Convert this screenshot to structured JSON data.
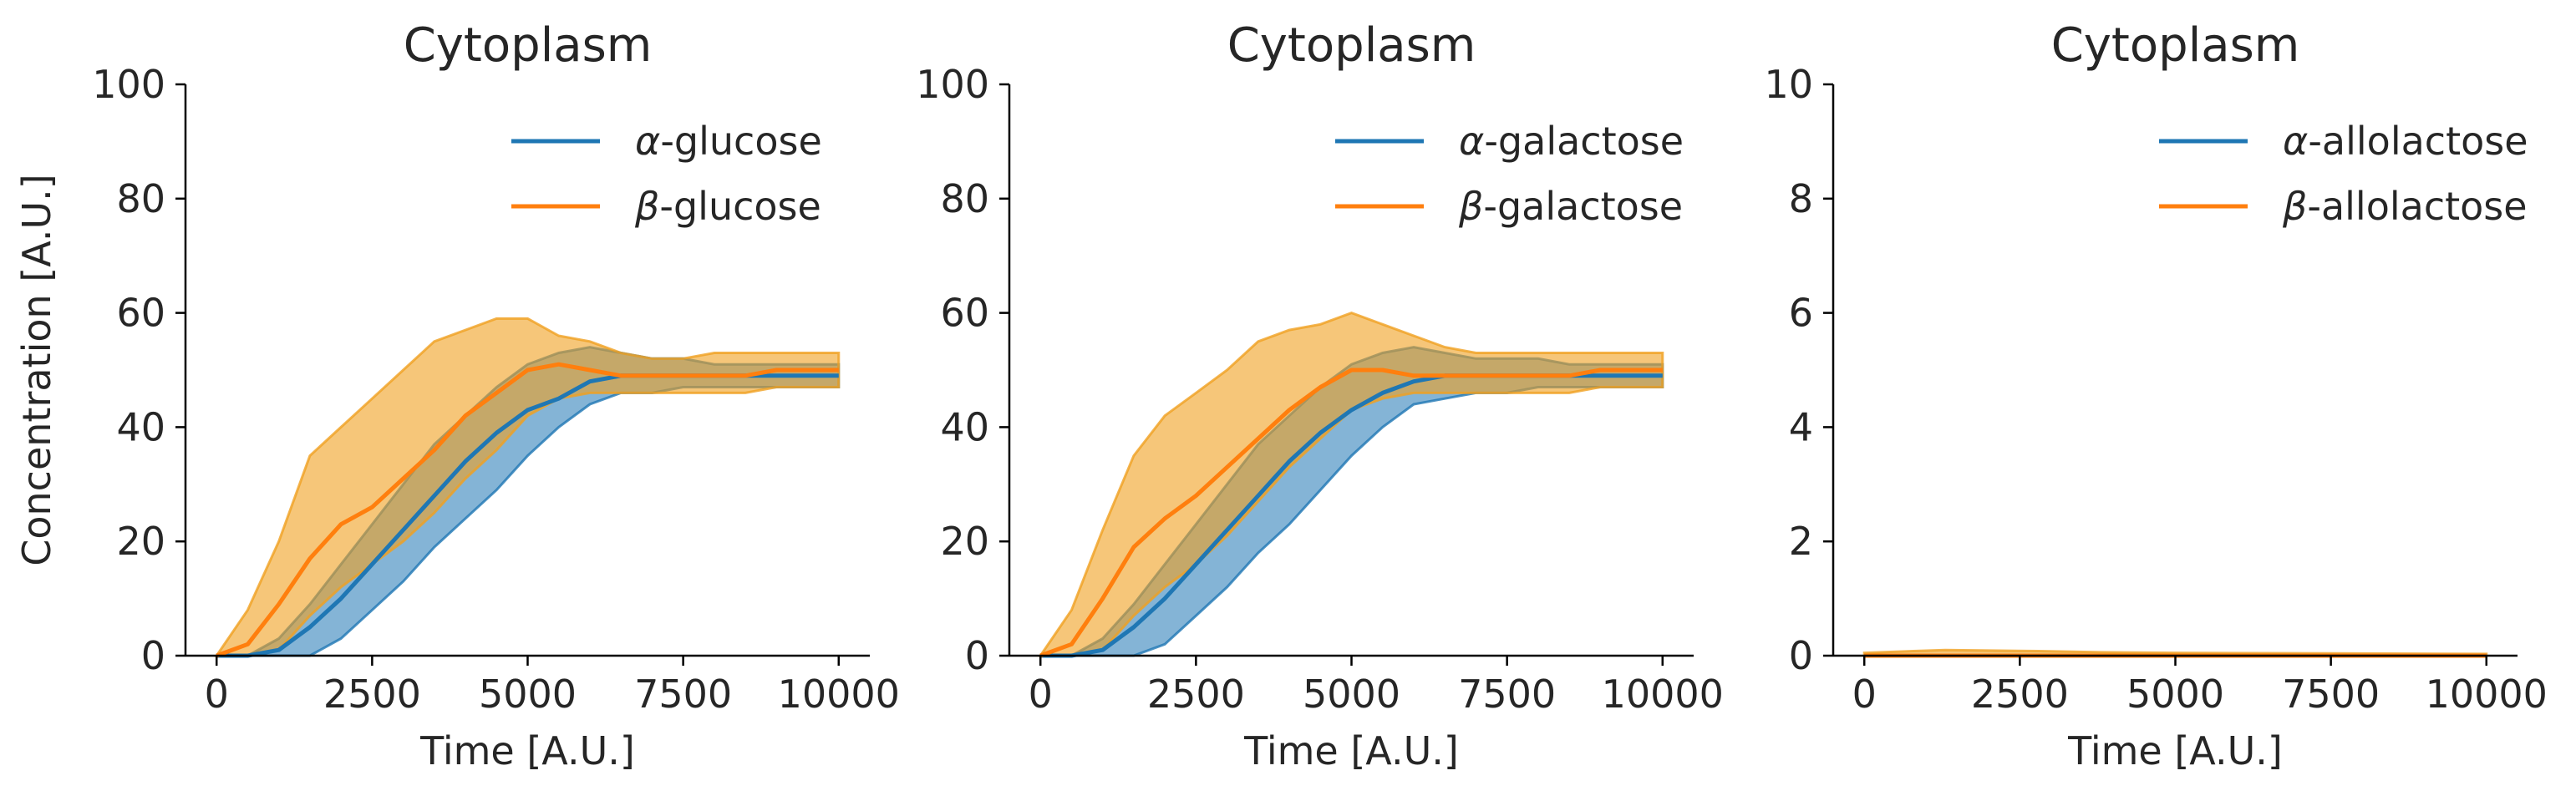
{
  "chart_data": [
    {
      "type": "line",
      "title": "Cytoplasm",
      "xlabel": "Time [A.U.]",
      "ylabel": "Concentration [A.U.]",
      "xlim": [
        -500,
        10500
      ],
      "ylim": [
        0,
        100
      ],
      "xticks": [
        0,
        2500,
        5000,
        7500,
        10000
      ],
      "xtick_labels": [
        "0",
        "2500",
        "5000",
        "7500",
        "10000"
      ],
      "yticks": [
        0,
        20,
        40,
        60,
        80,
        100
      ],
      "ytick_labels": [
        "0",
        "20",
        "40",
        "60",
        "80",
        "100"
      ],
      "grid": false,
      "legend": "top-right",
      "series": [
        {
          "name_greek": "α",
          "name": "-glucose",
          "color": "#1f77b4",
          "x": [
            0,
            500,
            1000,
            1500,
            2000,
            2500,
            3000,
            3500,
            4000,
            4500,
            5000,
            5500,
            6000,
            6500,
            7000,
            7500,
            8000,
            8500,
            9000,
            9500,
            10000
          ],
          "mean": [
            0,
            0,
            1,
            5,
            10,
            16,
            22,
            28,
            34,
            39,
            43,
            45,
            48,
            49,
            49,
            49,
            49,
            49,
            49,
            49,
            49
          ],
          "lower": [
            0,
            0,
            0,
            0,
            3,
            8,
            13,
            19,
            24,
            29,
            35,
            40,
            44,
            46,
            46,
            47,
            47,
            47,
            47,
            47,
            47
          ],
          "upper": [
            0,
            0,
            3,
            9,
            16,
            23,
            30,
            37,
            42,
            47,
            51,
            53,
            54,
            53,
            52,
            52,
            51,
            51,
            51,
            51,
            51
          ]
        },
        {
          "name_greek": "β",
          "name": "-glucose",
          "color": "#ff7f0e",
          "x": [
            0,
            500,
            1000,
            1500,
            2000,
            2500,
            3000,
            3500,
            4000,
            4500,
            5000,
            5500,
            6000,
            6500,
            7000,
            7500,
            8000,
            8500,
            9000,
            9500,
            10000
          ],
          "mean": [
            0,
            2,
            9,
            17,
            23,
            26,
            31,
            36,
            42,
            46,
            50,
            51,
            50,
            49,
            49,
            49,
            49,
            49,
            50,
            50,
            50
          ],
          "lower": [
            0,
            0,
            1,
            7,
            12,
            16,
            20,
            25,
            31,
            36,
            42,
            45,
            46,
            46,
            46,
            46,
            46,
            46,
            47,
            47,
            47
          ],
          "upper": [
            0,
            8,
            20,
            35,
            40,
            45,
            50,
            55,
            57,
            59,
            59,
            56,
            55,
            53,
            52,
            52,
            53,
            53,
            53,
            53,
            53
          ]
        }
      ]
    },
    {
      "type": "line",
      "title": "Cytoplasm",
      "xlabel": "Time [A.U.]",
      "ylabel": "",
      "xlim": [
        -500,
        10500
      ],
      "ylim": [
        0,
        100
      ],
      "xticks": [
        0,
        2500,
        5000,
        7500,
        10000
      ],
      "xtick_labels": [
        "0",
        "2500",
        "5000",
        "7500",
        "10000"
      ],
      "yticks": [
        0,
        20,
        40,
        60,
        80,
        100
      ],
      "ytick_labels": [
        "0",
        "20",
        "40",
        "60",
        "80",
        "100"
      ],
      "grid": false,
      "legend": "top-right",
      "series": [
        {
          "name_greek": "α",
          "name": "-galactose",
          "color": "#1f77b4",
          "x": [
            0,
            500,
            1000,
            1500,
            2000,
            2500,
            3000,
            3500,
            4000,
            4500,
            5000,
            5500,
            6000,
            6500,
            7000,
            7500,
            8000,
            8500,
            9000,
            9500,
            10000
          ],
          "mean": [
            0,
            0,
            1,
            5,
            10,
            16,
            22,
            28,
            34,
            39,
            43,
            46,
            48,
            49,
            49,
            49,
            49,
            49,
            49,
            49,
            49
          ],
          "lower": [
            0,
            0,
            0,
            0,
            2,
            7,
            12,
            18,
            23,
            29,
            35,
            40,
            44,
            45,
            46,
            46,
            47,
            47,
            47,
            47,
            47
          ],
          "upper": [
            0,
            0,
            3,
            9,
            16,
            23,
            30,
            37,
            42,
            47,
            51,
            53,
            54,
            53,
            52,
            52,
            52,
            51,
            51,
            51,
            51
          ]
        },
        {
          "name_greek": "β",
          "name": "-galactose",
          "color": "#ff7f0e",
          "x": [
            0,
            500,
            1000,
            1500,
            2000,
            2500,
            3000,
            3500,
            4000,
            4500,
            5000,
            5500,
            6000,
            6500,
            7000,
            7500,
            8000,
            8500,
            9000,
            9500,
            10000
          ],
          "mean": [
            0,
            2,
            10,
            19,
            24,
            28,
            33,
            38,
            43,
            47,
            50,
            50,
            49,
            49,
            49,
            49,
            49,
            49,
            50,
            50,
            50
          ],
          "lower": [
            0,
            0,
            1,
            7,
            12,
            16,
            21,
            27,
            33,
            38,
            43,
            45,
            46,
            46,
            46,
            46,
            46,
            46,
            47,
            47,
            47
          ],
          "upper": [
            0,
            8,
            22,
            35,
            42,
            46,
            50,
            55,
            57,
            58,
            60,
            58,
            56,
            54,
            53,
            53,
            53,
            53,
            53,
            53,
            53
          ]
        }
      ]
    },
    {
      "type": "line",
      "title": "Cytoplasm",
      "xlabel": "Time [A.U.]",
      "ylabel": "",
      "xlim": [
        -500,
        10500
      ],
      "ylim": [
        0,
        10
      ],
      "xticks": [
        0,
        2500,
        5000,
        7500,
        10000
      ],
      "xtick_labels": [
        "0",
        "2500",
        "5000",
        "7500",
        "10000"
      ],
      "yticks": [
        0,
        2,
        4,
        6,
        8,
        10
      ],
      "ytick_labels": [
        "0",
        "2",
        "4",
        "6",
        "8",
        "10"
      ],
      "grid": false,
      "legend": "top-right",
      "series": [
        {
          "name_greek": "α",
          "name": "-allolactose",
          "color": "#1f77b4",
          "x": [
            0,
            10000
          ],
          "mean": [
            0,
            0
          ],
          "lower": [
            0,
            0
          ],
          "upper": [
            0,
            0
          ]
        },
        {
          "name_greek": "β",
          "name": "-allolactose",
          "color": "#ff7f0e",
          "x": [
            0,
            1300,
            2800,
            3800,
            5000,
            10000
          ],
          "mean": [
            0,
            0,
            0,
            0,
            0,
            0
          ],
          "lower": [
            0,
            0,
            0,
            0,
            0,
            0
          ],
          "upper": [
            0.05,
            0.1,
            0.08,
            0.06,
            0.05,
            0.03
          ]
        }
      ]
    }
  ]
}
